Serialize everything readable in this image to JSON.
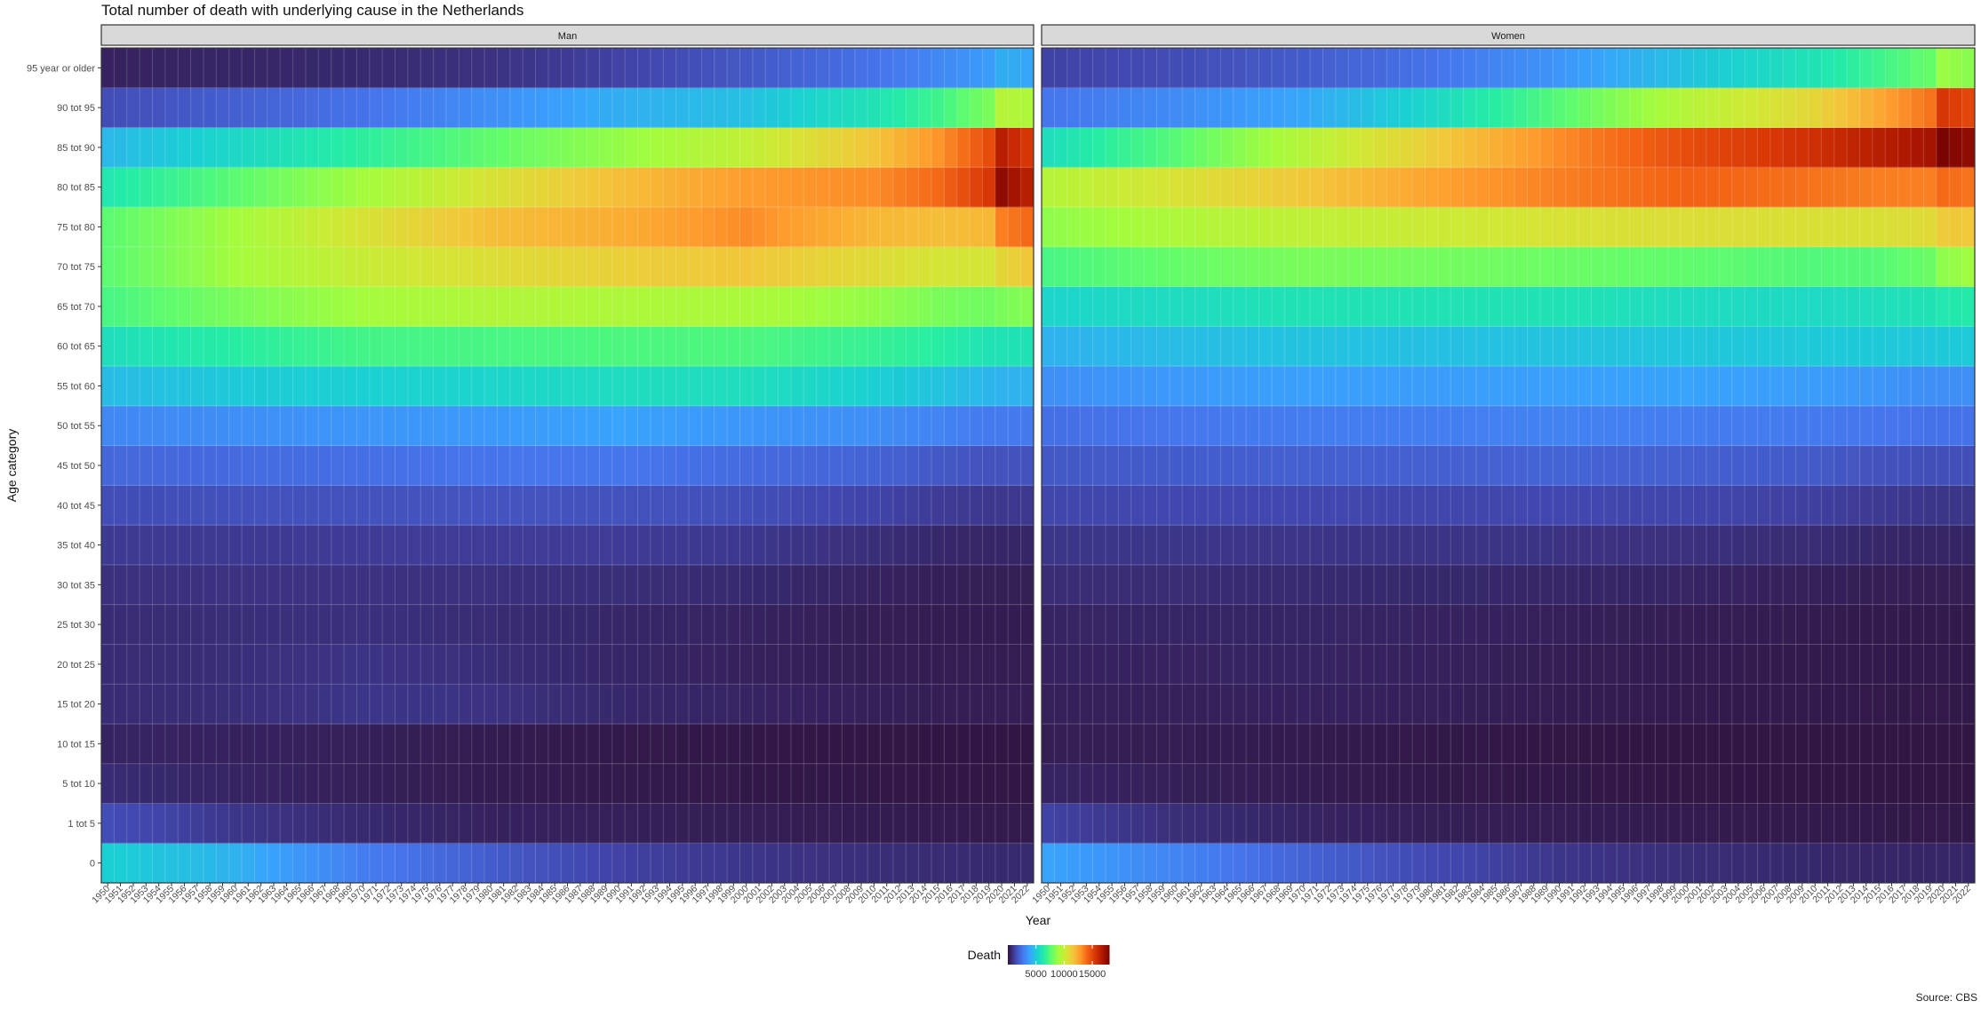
{
  "chart_data": {
    "type": "heatmap",
    "title": "Total number of death with underlying cause in the Netherlands",
    "xlabel": "Year",
    "ylabel": "Age category",
    "caption": "Source: CBS",
    "facets": [
      "Man",
      "Women"
    ],
    "x": [
      1950,
      1951,
      1952,
      1953,
      1954,
      1955,
      1956,
      1957,
      1958,
      1959,
      1960,
      1961,
      1962,
      1963,
      1964,
      1965,
      1966,
      1967,
      1968,
      1969,
      1970,
      1971,
      1972,
      1973,
      1974,
      1975,
      1976,
      1977,
      1978,
      1979,
      1980,
      1981,
      1982,
      1983,
      1984,
      1985,
      1986,
      1987,
      1988,
      1989,
      1990,
      1991,
      1992,
      1993,
      1994,
      1995,
      1996,
      1997,
      1998,
      1999,
      2000,
      2001,
      2002,
      2003,
      2004,
      2005,
      2006,
      2007,
      2008,
      2009,
      2010,
      2011,
      2012,
      2013,
      2014,
      2015,
      2016,
      2017,
      2018,
      2019,
      2020,
      2021,
      2022
    ],
    "categories": [
      "0",
      "1 tot 5",
      "5 tot 10",
      "10 tot 15",
      "15 tot 20",
      "20 tot 25",
      "25 tot 30",
      "30 tot 35",
      "35 tot 40",
      "40 tot 45",
      "45 tot 50",
      "50 tot 55",
      "55 tot 60",
      "60 tot 65",
      "65 tot 70",
      "70 tot 75",
      "75 tot 80",
      "80 tot 85",
      "85 tot 90",
      "90 tot 95",
      "95 year or older"
    ],
    "anchors_x": [
      1950,
      1960,
      1970,
      1980,
      1990,
      2000,
      2010,
      2015,
      2019,
      2020,
      2022
    ],
    "series": [
      {
        "name": "Man",
        "anchor_values": [
          [
            5200,
            4300,
            2800,
            1900,
            1200,
            900,
            700,
            650,
            600,
            600,
            600
          ],
          [
            1500,
            900,
            600,
            400,
            350,
            300,
            250,
            230,
            220,
            220,
            220
          ],
          [
            650,
            450,
            350,
            250,
            200,
            160,
            140,
            130,
            130,
            130,
            130
          ],
          [
            450,
            400,
            350,
            250,
            180,
            140,
            120,
            110,
            110,
            110,
            110
          ],
          [
            650,
            700,
            900,
            800,
            550,
            450,
            350,
            300,
            300,
            300,
            300
          ],
          [
            650,
            700,
            850,
            700,
            500,
            380,
            300,
            270,
            270,
            270,
            270
          ],
          [
            650,
            700,
            750,
            650,
            520,
            420,
            300,
            260,
            260,
            260,
            260
          ],
          [
            750,
            800,
            800,
            750,
            700,
            600,
            420,
            330,
            320,
            320,
            320
          ],
          [
            1000,
            1000,
            1050,
            1050,
            1050,
            950,
            700,
            550,
            500,
            500,
            500
          ],
          [
            1500,
            1600,
            1650,
            1700,
            1650,
            1550,
            1250,
            1050,
            950,
            950,
            950
          ],
          [
            2200,
            2300,
            2400,
            2550,
            2600,
            2300,
            2100,
            1800,
            1650,
            1650,
            1650
          ],
          [
            3100,
            3300,
            3500,
            3600,
            3900,
            3500,
            3300,
            3000,
            2700,
            2700,
            2700
          ],
          [
            4600,
            5000,
            5200,
            5400,
            5700,
            5800,
            5200,
            4800,
            4400,
            4300,
            4300
          ],
          [
            5800,
            6500,
            7100,
            7200,
            7300,
            7300,
            6800,
            6500,
            6000,
            6000,
            6000
          ],
          [
            7200,
            8200,
            9000,
            9400,
            9300,
            9200,
            8700,
            8200,
            8000,
            8200,
            8400
          ],
          [
            7600,
            9000,
            10000,
            10700,
            11200,
            11500,
            10800,
            10400,
            10400,
            11000,
            11500
          ],
          [
            7600,
            9000,
            10500,
            11800,
            12300,
            13200,
            12000,
            11800,
            12000,
            13500,
            14000
          ],
          [
            6200,
            7600,
            9000,
            10500,
            11800,
            12800,
            13200,
            14000,
            15500,
            17500,
            16500
          ],
          [
            4500,
            5500,
            6600,
            7700,
            8700,
            9800,
            11600,
            13000,
            14800,
            16500,
            15500
          ],
          [
            1500,
            2000,
            2500,
            3300,
            4200,
            4700,
            6000,
            7000,
            8200,
            9500,
            9300
          ],
          [
            400,
            500,
            600,
            800,
            1200,
            1800,
            2500,
            3100,
            3700,
            4200,
            4000
          ]
        ]
      },
      {
        "name": "Women",
        "anchor_values": [
          [
            3900,
            3000,
            2100,
            1400,
            900,
            700,
            550,
            500,
            500,
            500,
            500
          ],
          [
            1200,
            700,
            450,
            320,
            270,
            230,
            200,
            180,
            170,
            170,
            170
          ],
          [
            450,
            330,
            250,
            180,
            150,
            120,
            100,
            95,
            95,
            95,
            95
          ],
          [
            300,
            270,
            230,
            160,
            120,
            100,
            90,
            85,
            85,
            85,
            85
          ],
          [
            350,
            350,
            400,
            350,
            260,
            220,
            190,
            170,
            170,
            170,
            170
          ],
          [
            400,
            420,
            450,
            380,
            290,
            240,
            200,
            180,
            180,
            180,
            180
          ],
          [
            450,
            480,
            480,
            420,
            350,
            290,
            230,
            200,
            200,
            200,
            200
          ],
          [
            650,
            650,
            620,
            560,
            520,
            460,
            350,
            300,
            290,
            290,
            290
          ],
          [
            900,
            900,
            880,
            830,
            820,
            760,
            650,
            520,
            480,
            480,
            480
          ],
          [
            1300,
            1350,
            1350,
            1300,
            1350,
            1300,
            1150,
            1000,
            900,
            900,
            900
          ],
          [
            1800,
            1900,
            2000,
            2000,
            2100,
            2000,
            1850,
            1650,
            1550,
            1550,
            1550
          ],
          [
            2400,
            2600,
            2800,
            2800,
            2950,
            2800,
            2700,
            2600,
            2500,
            2500,
            2500
          ],
          [
            3300,
            3600,
            3800,
            3700,
            3800,
            3900,
            3700,
            3500,
            3300,
            3300,
            3300
          ],
          [
            4300,
            4600,
            4800,
            4700,
            4800,
            4900,
            5000,
            5000,
            4900,
            5000,
            5000
          ],
          [
            5400,
            5700,
            6000,
            6000,
            6000,
            5700,
            5600,
            5800,
            6000,
            6200,
            6300
          ],
          [
            7200,
            7800,
            8200,
            8100,
            7900,
            7700,
            7400,
            7500,
            7900,
            8600,
            8900
          ],
          [
            8600,
            9300,
            9800,
            10100,
            10500,
            10700,
            10600,
            10600,
            10800,
            11400,
            11500
          ],
          [
            9500,
            10500,
            11500,
            12600,
            13500,
            14200,
            13800,
            13500,
            13500,
            14000,
            13800
          ],
          [
            5800,
            7500,
            9500,
            11300,
            13200,
            14800,
            15800,
            16500,
            17000,
            18000,
            17500
          ],
          [
            2600,
            3200,
            4000,
            5500,
            7500,
            9500,
            11000,
            12500,
            13800,
            15500,
            15000
          ],
          [
            1200,
            1500,
            1900,
            2500,
            3500,
            4800,
            6000,
            7000,
            7800,
            8800,
            8500
          ]
        ]
      }
    ],
    "legend": {
      "title": "Death",
      "ticks": [
        5000,
        10000,
        15000
      ],
      "tick_labels": [
        "5000",
        "10000",
        "15000"
      ],
      "range": [
        0,
        18000
      ],
      "position": "bottom"
    },
    "colors": {
      "scale": [
        "#30123B",
        "#4145AB",
        "#4675ED",
        "#39A2FC",
        "#1BCFD4",
        "#24ECA6",
        "#61FC6C",
        "#A4FC3C",
        "#D1E834",
        "#F3C63A",
        "#FE9B2D",
        "#F36315",
        "#D93806",
        "#B11901",
        "#7A0402"
      ],
      "strip_fill": "#D9D9D9",
      "grid": "#FFFFFF",
      "border": "#333333"
    }
  }
}
